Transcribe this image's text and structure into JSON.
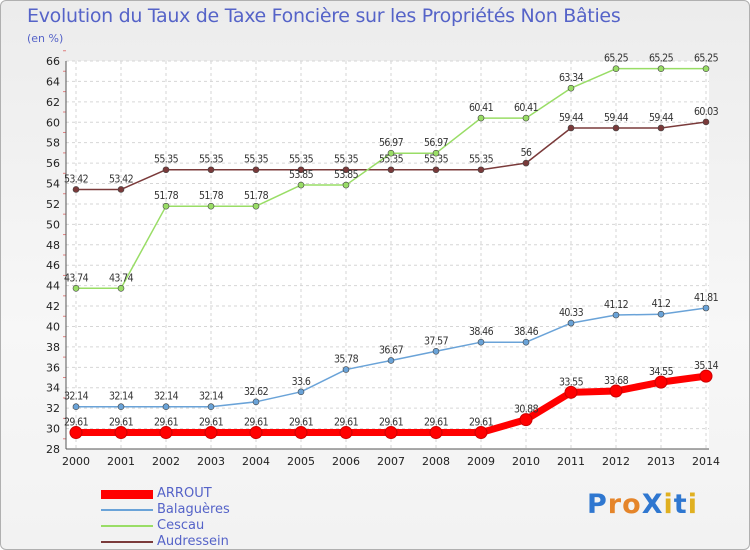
{
  "title": "Evolution du Taux de Taxe Foncière sur les Propriétés Non Bâties",
  "unit_label": "(en %)",
  "logo": {
    "text": "ProXiti",
    "letter_colors": [
      "#2f77d0",
      "#e5852a",
      "#e5852a",
      "#2f77d0",
      "#e0b020",
      "#2f77d0",
      "#e0b020"
    ]
  },
  "chart_data": {
    "type": "line",
    "title": "Evolution du Taux de Taxe Foncière sur les Propriétés Non Bâties",
    "ylabel": "(en %)",
    "xlabel": "",
    "ylim": [
      28,
      66
    ],
    "yticks": [
      28,
      30,
      32,
      34,
      36,
      38,
      40,
      42,
      44,
      46,
      48,
      50,
      52,
      54,
      56,
      58,
      60,
      62,
      64,
      66
    ],
    "categories": [
      "2000",
      "2001",
      "2002",
      "2003",
      "2004",
      "2005",
      "2006",
      "2007",
      "2008",
      "2009",
      "2010",
      "2011",
      "2012",
      "2013",
      "2014"
    ],
    "grid": true,
    "legend": "bottom-left",
    "series": [
      {
        "name": "ARROUT",
        "color": "#ff0000",
        "bold": true,
        "values": [
          29.61,
          29.61,
          29.61,
          29.61,
          29.61,
          29.61,
          29.61,
          29.61,
          29.61,
          29.61,
          30.88,
          33.55,
          33.68,
          34.55,
          35.14
        ],
        "labels": [
          "29.61",
          "29.61",
          "29.61",
          "29.61",
          "29.61",
          "29.61",
          "29.61",
          "29.61",
          "29.61",
          "29.61",
          "30.88",
          "33.55",
          "33.68",
          "34.55",
          "35.14"
        ]
      },
      {
        "name": "Balaguères",
        "color": "#6aa3d8",
        "values": [
          32.14,
          32.14,
          32.14,
          32.14,
          32.62,
          33.6,
          35.78,
          36.67,
          37.57,
          38.46,
          38.46,
          40.33,
          41.12,
          41.2,
          41.81
        ],
        "labels": [
          "32.14",
          "32.14",
          "32.14",
          "32.14",
          "32.62",
          "33.6",
          "35.78",
          "36.67",
          "37.57",
          "38.46",
          "38.46",
          "40.33",
          "41.12",
          "41.2",
          "41.81"
        ]
      },
      {
        "name": "Cescau",
        "color": "#99dd66",
        "values": [
          43.74,
          43.74,
          51.78,
          51.78,
          51.78,
          53.85,
          53.85,
          56.97,
          56.97,
          60.41,
          60.41,
          63.34,
          65.25,
          65.25,
          65.25
        ],
        "labels": [
          "43.74",
          "43.74",
          "51.78",
          "51.78",
          "51.78",
          "53.85",
          "53.85",
          "56.97",
          "56.97",
          "60.41",
          "60.41",
          "63.34",
          "65.25",
          "65.25",
          "65.25"
        ]
      },
      {
        "name": "Audressein",
        "color": "#7a3a3a",
        "values": [
          53.42,
          53.42,
          55.35,
          55.35,
          55.35,
          55.35,
          55.35,
          55.35,
          55.35,
          55.35,
          56,
          59.44,
          59.44,
          59.44,
          60.03
        ],
        "labels": [
          "53.42",
          "53.42",
          "55.35",
          "55.35",
          "55.35",
          "55.35",
          "55.35",
          "55.35",
          "55.35",
          "55.35",
          "56",
          "59.44",
          "59.44",
          "59.44",
          "60.03"
        ]
      }
    ]
  }
}
